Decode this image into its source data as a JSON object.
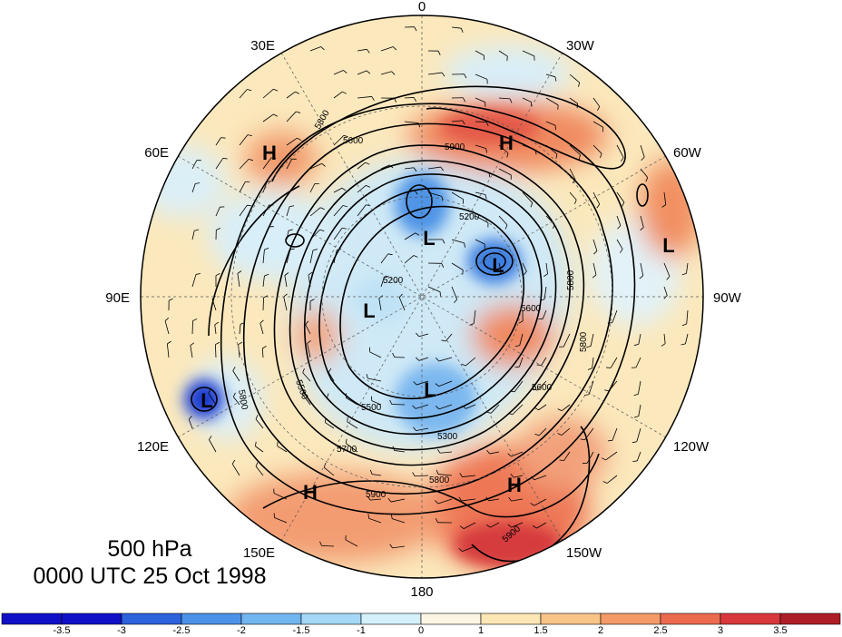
{
  "map": {
    "level": "500 hPa",
    "valid_time": "0000 UTC 25 Oct 1998",
    "longitude_labels": [
      {
        "key": "0",
        "text": "0"
      },
      {
        "key": "30W",
        "text": "30W"
      },
      {
        "key": "60W",
        "text": "60W"
      },
      {
        "key": "90W",
        "text": "90W"
      },
      {
        "key": "120W",
        "text": "120W"
      },
      {
        "key": "150W",
        "text": "150W"
      },
      {
        "key": "180",
        "text": "180"
      },
      {
        "key": "150E",
        "text": "150E"
      },
      {
        "key": "120E",
        "text": "120E"
      },
      {
        "key": "90E",
        "text": "90E"
      },
      {
        "key": "60E",
        "text": "60E"
      },
      {
        "key": "30E",
        "text": "30E"
      }
    ],
    "pressure_centers": [
      "H",
      "H",
      "L",
      "L",
      "L",
      "L",
      "L",
      "L",
      "H",
      "H"
    ],
    "contour_labels": [
      "5900",
      "5900",
      "5800",
      "5700",
      "5600",
      "5500",
      "5300",
      "5200",
      "5200",
      "5600",
      "5800",
      "5800",
      "5800",
      "5800",
      "5500",
      "5600",
      "5900"
    ],
    "colorbar": {
      "ticks": [
        "-3.5",
        "-3",
        "-2.5",
        "-2",
        "-1.5",
        "-1",
        "0",
        "1",
        "1.5",
        "2",
        "2.5",
        "3",
        "3.5"
      ],
      "colors": [
        "#1010c8",
        "#2c62dc",
        "#4c92e8",
        "#72b6f0",
        "#a4d8f6",
        "#d4f0fa",
        "#fbf6e4",
        "#fbe6b4",
        "#f8c488",
        "#f49a68",
        "#ec6a50",
        "#d8383c",
        "#ae1e28"
      ]
    }
  }
}
